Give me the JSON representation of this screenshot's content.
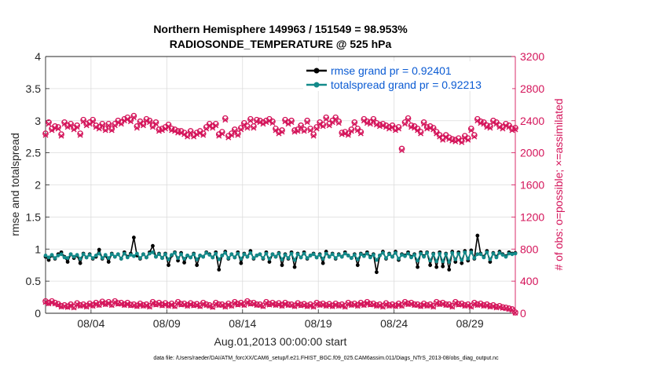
{
  "chart_data": {
    "type": "line",
    "title_line1": "Northern Hemisphere 149963 / 151549 = 98.953%",
    "title_line2": "RADIOSONDE_TEMPERATURE @ 525 hPa",
    "xlabel": "Aug.01,2013 00:00:00 start",
    "ylabel_left": "rmse and totalspread",
    "ylabel_right": "# of obs: o=possible; ×=assimilated",
    "footnote": "data file: /Users/raeder/DAI/ATM_forcXX/CAM6_setup/f.e21.FHIST_BGC.f09_025.CAM6assim.011/Diags_NTrS_2013-08/obs_diag_output.nc",
    "xlim": [
      1,
      32
    ],
    "ylim_left": [
      0,
      4
    ],
    "ylim_right": [
      0,
      3200
    ],
    "x_ticks": [
      {
        "x": 4,
        "label": "08/04"
      },
      {
        "x": 9,
        "label": "08/09"
      },
      {
        "x": 14,
        "label": "08/14"
      },
      {
        "x": 19,
        "label": "08/19"
      },
      {
        "x": 24,
        "label": "08/24"
      },
      {
        "x": 29,
        "label": "08/29"
      }
    ],
    "y_ticks_left": [
      "0",
      "0.5",
      "1",
      "1.5",
      "2",
      "2.5",
      "3",
      "3.5",
      "4"
    ],
    "y_ticks_right": [
      "0",
      "400",
      "800",
      "1200",
      "1600",
      "2000",
      "2400",
      "2800",
      "3200"
    ],
    "legend": [
      {
        "label": "rmse grand pr = 0.92401",
        "color": "#000000"
      },
      {
        "label": "totalspread grand pr = 0.92213",
        "color": "#138a8a"
      }
    ],
    "colors": {
      "rmse": "#000000",
      "spread": "#138a8a",
      "obs": "#d4145a",
      "legend_text": "#0b5bd3"
    },
    "series": [
      {
        "name": "rmse",
        "axis": "left",
        "values": [
          0.88,
          0.83,
          0.9,
          0.85,
          0.92,
          0.95,
          0.88,
          0.8,
          0.92,
          0.86,
          0.9,
          0.78,
          0.93,
          0.87,
          0.92,
          0.85,
          0.88,
          0.99,
          0.85,
          0.9,
          0.8,
          0.93,
          0.88,
          0.92,
          0.85,
          0.95,
          0.88,
          0.93,
          1.18,
          0.9,
          0.85,
          0.92,
          0.87,
          0.95,
          1.05,
          0.88,
          0.93,
          0.86,
          0.93,
          0.75,
          0.9,
          0.95,
          0.82,
          0.94,
          0.79,
          0.9,
          0.87,
          0.93,
          0.75,
          0.9,
          0.88,
          0.95,
          0.92,
          0.87,
          0.95,
          0.68,
          0.9,
          0.96,
          0.85,
          0.92,
          0.87,
          0.95,
          0.78,
          0.93,
          0.88,
          0.97,
          0.85,
          0.9,
          0.92,
          0.85,
          0.95,
          0.8,
          0.92,
          0.88,
          0.94,
          0.75,
          0.92,
          0.85,
          0.95,
          0.72,
          0.93,
          0.87,
          0.95,
          0.85,
          0.9,
          0.93,
          0.87,
          0.92,
          0.78,
          0.96,
          0.88,
          0.93,
          0.85,
          0.92,
          0.88,
          0.95,
          0.9,
          0.86,
          0.92,
          0.75,
          0.93,
          0.9,
          0.95,
          0.88,
          0.92,
          0.64,
          0.9,
          0.96,
          0.85,
          0.93,
          0.88,
          0.96,
          0.83,
          0.92,
          0.9,
          0.95,
          0.88,
          0.92,
          0.72,
          0.95,
          0.89,
          0.95,
          0.75,
          0.93,
          0.72,
          0.95,
          0.73,
          0.93,
          0.68,
          0.96,
          0.8,
          0.95,
          0.78,
          0.97,
          0.82,
          0.98,
          0.85,
          1.21,
          0.93,
          0.88,
          0.97,
          0.8,
          0.94,
          0.88,
          0.96,
          0.92,
          0.89,
          0.95,
          0.93,
          0.94
        ]
      },
      {
        "name": "totalspread",
        "axis": "left",
        "values": [
          0.9,
          0.87,
          0.91,
          0.86,
          0.9,
          0.92,
          0.87,
          0.86,
          0.92,
          0.88,
          0.91,
          0.85,
          0.92,
          0.87,
          0.91,
          0.86,
          0.9,
          0.93,
          0.86,
          0.91,
          0.86,
          0.92,
          0.88,
          0.92,
          0.85,
          0.93,
          0.87,
          0.91,
          0.89,
          0.93,
          0.86,
          0.92,
          0.87,
          0.93,
          0.95,
          0.88,
          0.92,
          0.86,
          0.92,
          0.84,
          0.91,
          0.94,
          0.86,
          0.92,
          0.85,
          0.9,
          0.87,
          0.92,
          0.84,
          0.9,
          0.88,
          0.94,
          0.91,
          0.87,
          0.93,
          0.84,
          0.9,
          0.94,
          0.86,
          0.92,
          0.87,
          0.93,
          0.85,
          0.92,
          0.88,
          0.94,
          0.86,
          0.9,
          0.92,
          0.86,
          0.93,
          0.85,
          0.92,
          0.88,
          0.93,
          0.84,
          0.91,
          0.86,
          0.93,
          0.83,
          0.92,
          0.87,
          0.93,
          0.86,
          0.9,
          0.92,
          0.87,
          0.91,
          0.85,
          0.93,
          0.88,
          0.92,
          0.86,
          0.91,
          0.88,
          0.93,
          0.9,
          0.86,
          0.91,
          0.84,
          0.92,
          0.89,
          0.93,
          0.87,
          0.91,
          0.83,
          0.9,
          0.94,
          0.86,
          0.92,
          0.88,
          0.94,
          0.85,
          0.91,
          0.89,
          0.93,
          0.87,
          0.91,
          0.82,
          0.93,
          0.88,
          0.94,
          0.82,
          0.92,
          0.81,
          0.93,
          0.81,
          0.92,
          0.8,
          0.94,
          0.84,
          0.93,
          0.83,
          0.95,
          0.85,
          0.95,
          0.86,
          0.92,
          0.92,
          0.87,
          0.95,
          0.84,
          0.93,
          0.87,
          0.94,
          0.91,
          0.88,
          0.93,
          0.92,
          0.93
        ]
      },
      {
        "name": "possible",
        "axis": "right",
        "values": [
          2240,
          2380,
          2300,
          2330,
          2320,
          2230,
          2380,
          2340,
          2360,
          2310,
          2340,
          2240,
          2410,
          2360,
          2380,
          2410,
          2340,
          2320,
          2360,
          2300,
          2360,
          2300,
          2360,
          2400,
          2380,
          2420,
          2440,
          2410,
          2460,
          2330,
          2390,
          2360,
          2420,
          2400,
          2340,
          2380,
          2290,
          2300,
          2320,
          2350,
          2300,
          2290,
          2270,
          2270,
          2250,
          2220,
          2270,
          2220,
          2250,
          2270,
          2240,
          2320,
          2360,
          2330,
          2360,
          2230,
          2260,
          2430,
          2210,
          2240,
          2290,
          2240,
          2310,
          2370,
          2330,
          2420,
          2330,
          2410,
          2400,
          2380,
          2400,
          2420,
          2390,
          2300,
          2260,
          2280,
          2410,
          2380,
          2400,
          2280,
          2290,
          2340,
          2290,
          2400,
          2300,
          2230,
          2320,
          2380,
          2350,
          2440,
          2360,
          2400,
          2440,
          2390,
          2250,
          2260,
          2240,
          2290,
          2380,
          2300,
          2260,
          2420,
          2390,
          2380,
          2420,
          2370,
          2350,
          2360,
          2340,
          2320,
          2340,
          2300,
          2320,
          2050,
          2380,
          2430,
          2340,
          2330,
          2300,
          2260,
          2380,
          2320,
          2330,
          2310,
          2260,
          2220,
          2180,
          2220,
          2190,
          2170,
          2160,
          2180,
          2150,
          2210,
          2180,
          2300,
          2220,
          2420,
          2390,
          2380,
          2340,
          2330,
          2400,
          2380,
          2340,
          2320,
          2360,
          2340,
          2300,
          2310
        ]
      },
      {
        "name": "assimilated",
        "axis": "right",
        "values": [
          2220,
          2360,
          2280,
          2310,
          2300,
          2210,
          2360,
          2320,
          2340,
          2290,
          2320,
          2220,
          2390,
          2340,
          2360,
          2390,
          2320,
          2300,
          2340,
          2280,
          2340,
          2280,
          2340,
          2380,
          2360,
          2400,
          2420,
          2390,
          2440,
          2310,
          2370,
          2340,
          2400,
          2380,
          2320,
          2360,
          2270,
          2280,
          2300,
          2330,
          2280,
          2270,
          2250,
          2250,
          2230,
          2200,
          2250,
          2200,
          2230,
          2250,
          2220,
          2300,
          2340,
          2310,
          2340,
          2210,
          2240,
          2410,
          2190,
          2220,
          2270,
          2220,
          2290,
          2350,
          2310,
          2400,
          2310,
          2390,
          2380,
          2360,
          2380,
          2400,
          2370,
          2280,
          2240,
          2260,
          2390,
          2360,
          2380,
          2260,
          2270,
          2320,
          2270,
          2380,
          2280,
          2210,
          2300,
          2360,
          2330,
          2420,
          2340,
          2380,
          2420,
          2370,
          2230,
          2240,
          2220,
          2270,
          2360,
          2280,
          2240,
          2400,
          2370,
          2360,
          2400,
          2350,
          2330,
          2340,
          2320,
          2300,
          2320,
          2280,
          2300,
          2030,
          2360,
          2410,
          2320,
          2310,
          2280,
          2240,
          2360,
          2300,
          2310,
          2290,
          2240,
          2200,
          2160,
          2200,
          2170,
          2150,
          2140,
          2160,
          2130,
          2190,
          2160,
          2280,
          2200,
          2400,
          2370,
          2360,
          2320,
          2310,
          2380,
          2360,
          2320,
          2300,
          2340,
          2320,
          2280,
          2290
        ]
      },
      {
        "name": "possible_bottom",
        "axis": "right",
        "values": [
          150,
          130,
          150,
          130,
          115,
          90,
          100,
          85,
          110,
          80,
          125,
          100,
          110,
          90,
          120,
          100,
          130,
          110,
          145,
          120,
          140,
          110,
          150,
          125,
          130,
          110,
          130,
          105,
          110,
          95,
          120,
          100,
          110,
          90,
          140,
          115,
          130,
          105,
          125,
          100,
          120,
          95,
          140,
          115,
          120,
          100,
          125,
          105,
          115,
          95,
          130,
          110,
          100,
          85,
          130,
          110,
          110,
          90,
          120,
          100,
          140,
          115,
          130,
          110,
          150,
          125,
          130,
          110,
          110,
          95,
          140,
          115,
          130,
          110,
          125,
          100,
          130,
          110,
          110,
          95,
          125,
          105,
          115,
          95,
          110,
          90,
          130,
          110,
          120,
          100,
          115,
          95,
          120,
          100,
          110,
          90,
          130,
          110,
          120,
          100,
          130,
          110,
          140,
          115,
          120,
          100,
          110,
          90,
          125,
          100,
          110,
          95,
          120,
          100,
          140,
          120,
          130,
          110,
          110,
          95,
          120,
          100,
          110,
          90,
          140,
          120,
          130,
          110,
          110,
          90,
          140,
          115,
          120,
          100,
          110,
          90,
          130,
          110,
          120,
          100,
          110,
          90,
          100,
          80,
          90,
          75,
          70,
          60,
          50,
          10
        ]
      },
      {
        "name": "assimilated_bottom",
        "axis": "right",
        "values": [
          140,
          120,
          140,
          120,
          105,
          80,
          90,
          75,
          100,
          70,
          115,
          90,
          100,
          80,
          110,
          90,
          120,
          100,
          135,
          110,
          130,
          100,
          140,
          115,
          120,
          100,
          120,
          95,
          100,
          85,
          110,
          90,
          100,
          80,
          130,
          105,
          120,
          95,
          115,
          90,
          110,
          85,
          130,
          105,
          110,
          90,
          115,
          95,
          105,
          85,
          120,
          100,
          90,
          75,
          120,
          100,
          100,
          80,
          110,
          90,
          130,
          105,
          120,
          100,
          140,
          115,
          120,
          100,
          100,
          85,
          130,
          105,
          120,
          100,
          115,
          90,
          120,
          100,
          100,
          85,
          115,
          95,
          105,
          85,
          100,
          80,
          120,
          100,
          110,
          90,
          105,
          85,
          110,
          90,
          100,
          80,
          120,
          100,
          110,
          90,
          120,
          100,
          130,
          105,
          110,
          90,
          100,
          80,
          115,
          90,
          100,
          85,
          110,
          90,
          130,
          110,
          120,
          100,
          100,
          85,
          110,
          90,
          100,
          80,
          130,
          110,
          120,
          100,
          100,
          80,
          130,
          105,
          110,
          90,
          100,
          80,
          120,
          100,
          110,
          90,
          100,
          80,
          90,
          70,
          80,
          65,
          60,
          50,
          40,
          5
        ]
      }
    ]
  }
}
